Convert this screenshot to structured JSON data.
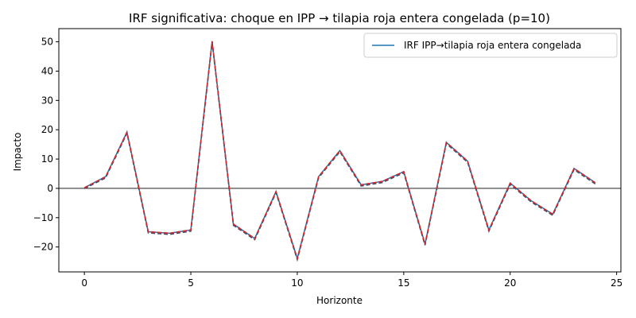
{
  "chart_data": {
    "type": "line",
    "title": "IRF significativa: choque en IPP → tilapia roja entera congelada (p=10)",
    "xlabel": "Horizonte",
    "ylabel": "Impacto",
    "xlim": [
      -1.2,
      25.2
    ],
    "ylim": [
      -28.5,
      54.5
    ],
    "xticks": [
      0,
      5,
      10,
      15,
      20,
      25
    ],
    "yticks": [
      -20,
      -10,
      0,
      10,
      20,
      30,
      40,
      50
    ],
    "ytick_labels": [
      "−20",
      "−10",
      "0",
      "10",
      "20",
      "30",
      "40",
      "50"
    ],
    "grid": false,
    "legend_position": "top-right",
    "zero_line": true,
    "x": [
      0,
      1,
      2,
      3,
      4,
      5,
      6,
      7,
      8,
      9,
      10,
      11,
      12,
      13,
      14,
      15,
      16,
      17,
      18,
      19,
      20,
      21,
      22,
      23,
      24
    ],
    "series": [
      {
        "name": "IRF IPP→tilapia roja entera congelada",
        "color": "#1f77b4",
        "values": [
          0.2,
          4,
          19.2,
          -14.8,
          -15.3,
          -14.2,
          50.2,
          -12.2,
          -17.1,
          -1.1,
          -23.9,
          4,
          12.9,
          1.2,
          2.4,
          5.7,
          -19,
          15.7,
          9.3,
          -14.2,
          1.8,
          -4.3,
          -8.8,
          6.8,
          1.9
        ]
      },
      {
        "color": "#d62728",
        "values": [
          0.2,
          4,
          19.2,
          -14.8,
          -15.3,
          -14.2,
          50.2,
          -12.2,
          -17.1,
          -1.1,
          -23.9,
          4,
          12.9,
          1.2,
          2.4,
          5.7,
          -19,
          15.7,
          9.3,
          -14.2,
          1.8,
          -4.3,
          -8.8,
          6.8,
          1.9
        ]
      },
      {
        "color": "#4a4a6a",
        "values": [
          -0.1,
          3.6,
          18.8,
          -15.2,
          -15.7,
          -14.6,
          49.8,
          -12.6,
          -17.5,
          -1.5,
          -24.3,
          3.6,
          12.5,
          0.8,
          2.0,
          5.3,
          -19.4,
          15.3,
          8.9,
          -14.6,
          1.4,
          -4.7,
          -9.2,
          6.4,
          1.5
        ]
      }
    ]
  }
}
